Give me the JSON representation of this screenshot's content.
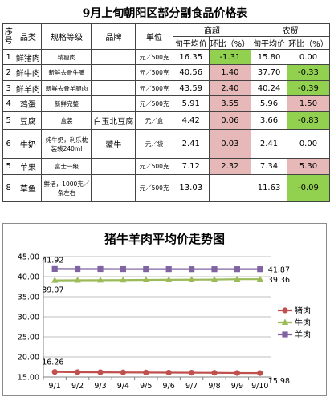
{
  "table": {
    "title": "9月上旬朝阳区部分副食品价格表",
    "headers": {
      "seq": "序号",
      "name": "品类",
      "spec": "规格等级",
      "brand": "品牌",
      "unit": "单位",
      "supermarket": "商超",
      "market": "农贸",
      "avg_price": "旬平均价",
      "change": "环比（%）"
    },
    "rows": [
      {
        "seq": "1",
        "name": "鲜猪肉",
        "spec": "精瘦肉",
        "brand": "",
        "unit": "元／500克",
        "s_price": "16.35",
        "s_change": "-1.31",
        "s_tone": "neg",
        "m_price": "15.80",
        "m_change": "0.00",
        "m_tone": "none"
      },
      {
        "seq": "2",
        "name": "鲜牛肉",
        "spec": "新鲜去骨牛腩",
        "brand": "",
        "unit": "元／500克",
        "s_price": "40.56",
        "s_change": "1.40",
        "s_tone": "pos",
        "m_price": "37.70",
        "m_change": "-0.33",
        "m_tone": "neg"
      },
      {
        "seq": "3",
        "name": "鲜羊肉",
        "spec": "新鲜去骨羊腿肉",
        "brand": "",
        "unit": "元／500克",
        "s_price": "43.59",
        "s_change": "2.40",
        "s_tone": "pos",
        "m_price": "40.24",
        "m_change": "-0.39",
        "m_tone": "neg"
      },
      {
        "seq": "4",
        "name": "鸡蛋",
        "spec": "新鲜完整",
        "brand": "",
        "unit": "元／500克",
        "s_price": "5.91",
        "s_change": "3.55",
        "s_tone": "pos",
        "m_price": "5.96",
        "m_change": "1.50",
        "m_tone": "pos"
      },
      {
        "seq": "5",
        "name": "豆腐",
        "spec": "盒装",
        "brand": "白玉北豆腐",
        "unit": "元／盒",
        "s_price": "4.42",
        "s_change": "0.06",
        "s_tone": "pos",
        "m_price": "3.66",
        "m_change": "-0.83",
        "m_tone": "neg"
      },
      {
        "seq": "6",
        "name": "牛奶",
        "spec": "纯牛奶，利乐枕装袋240ml",
        "brand": "蒙牛",
        "unit": "元／袋",
        "s_price": "2.41",
        "s_change": "0.03",
        "s_tone": "pos",
        "m_price": "2.41",
        "m_change": "0.00",
        "m_tone": "none"
      },
      {
        "seq": "5",
        "name": "苹果",
        "spec": "富士一级",
        "brand": "",
        "unit": "元／500克",
        "s_price": "7.12",
        "s_change": "2.32",
        "s_tone": "pos",
        "m_price": "7.34",
        "m_change": "5.30",
        "m_tone": "pos"
      },
      {
        "seq": "8",
        "name": "草鱼",
        "spec": "鲜活，1000克／条左右",
        "brand": "",
        "unit": "元／500克",
        "s_price": "13.03",
        "s_change": "",
        "s_tone": "none",
        "m_price": "11.63",
        "m_change": "-0.09",
        "m_tone": "neg"
      }
    ]
  },
  "colors": {
    "neg": "#92d050",
    "pos": "#e6b8b7"
  },
  "chart_data": {
    "type": "line",
    "title": "猪牛羊肉平均价走势图",
    "categories": [
      "9/1",
      "9/2",
      "9/3",
      "9/4",
      "9/5",
      "9/6",
      "9/7",
      "9/8",
      "9/9",
      "9/10"
    ],
    "ylim": [
      15.0,
      45.0
    ],
    "yticks": [
      "15.00",
      "20.00",
      "25.00",
      "30.00",
      "35.00",
      "40.00",
      "45.00"
    ],
    "grid": true,
    "legend_position": "right",
    "series": [
      {
        "name": "猪肉",
        "color": "#c0504d",
        "marker": "circle",
        "values": [
          16.26,
          16.2,
          16.18,
          16.15,
          16.12,
          16.1,
          16.08,
          16.05,
          16.0,
          15.98
        ],
        "labels": [
          "16.26",
          "",
          "",
          "",
          "",
          "",
          "",
          "",
          "",
          "15.98"
        ]
      },
      {
        "name": "牛肉",
        "color": "#9bbb59",
        "marker": "triangle",
        "values": [
          39.07,
          39.1,
          39.12,
          39.15,
          39.2,
          39.22,
          39.25,
          39.28,
          39.36,
          39.36
        ],
        "labels": [
          "39.07",
          "",
          "",
          "",
          "",
          "",
          "",
          "",
          "",
          "39.36"
        ]
      },
      {
        "name": "羊肉",
        "color": "#8064a2",
        "marker": "square",
        "values": [
          41.92,
          41.9,
          41.9,
          41.89,
          41.88,
          41.88,
          41.87,
          41.87,
          41.87,
          41.87
        ],
        "labels": [
          "41.92",
          "",
          "",
          "",
          "",
          "",
          "",
          "",
          "",
          "41.87"
        ]
      }
    ]
  }
}
